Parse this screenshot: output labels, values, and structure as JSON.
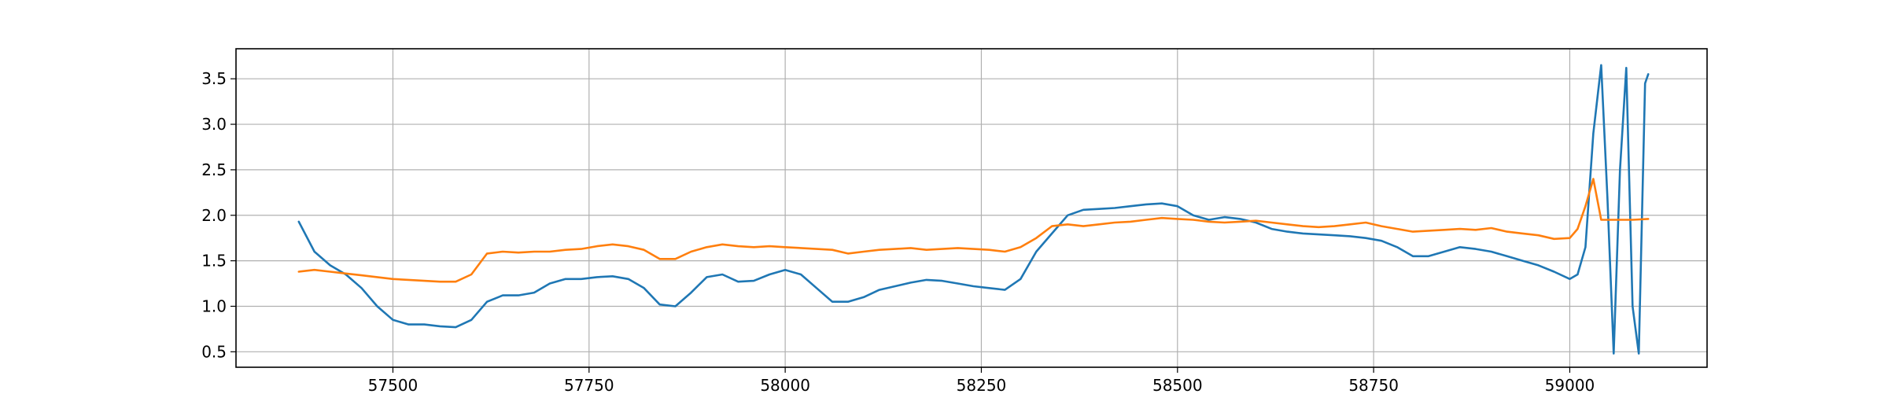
{
  "chart_data": {
    "type": "line",
    "title": "",
    "xlabel": "",
    "ylabel": "",
    "xlim": [
      57300,
      59175
    ],
    "ylim": [
      0.33,
      3.83
    ],
    "grid": true,
    "x_ticks": [
      57500,
      57750,
      58000,
      58250,
      58500,
      58750,
      59000
    ],
    "y_ticks": [
      0.5,
      1.0,
      1.5,
      2.0,
      2.5,
      3.0,
      3.5
    ],
    "x_tick_labels": [
      "57500",
      "57750",
      "58000",
      "58250",
      "58500",
      "58750",
      "59000"
    ],
    "y_tick_labels": [
      "0.5",
      "1.0",
      "1.5",
      "2.0",
      "2.5",
      "3.0",
      "3.5"
    ],
    "series": [
      {
        "color": "#1f77b4",
        "x": [
          57380,
          57400,
          57420,
          57440,
          57460,
          57480,
          57500,
          57520,
          57540,
          57560,
          57580,
          57600,
          57620,
          57640,
          57660,
          57680,
          57700,
          57720,
          57740,
          57760,
          57780,
          57800,
          57820,
          57840,
          57860,
          57880,
          57900,
          57920,
          57940,
          57960,
          57980,
          58000,
          58020,
          58040,
          58060,
          58080,
          58100,
          58120,
          58140,
          58160,
          58180,
          58200,
          58220,
          58240,
          58260,
          58280,
          58300,
          58320,
          58340,
          58360,
          58380,
          58400,
          58420,
          58440,
          58460,
          58480,
          58500,
          58520,
          58540,
          58560,
          58580,
          58600,
          58620,
          58640,
          58660,
          58680,
          58700,
          58720,
          58740,
          58760,
          58780,
          58800,
          58820,
          58840,
          58860,
          58880,
          58900,
          58920,
          58940,
          58960,
          58980,
          59000,
          59010,
          59020,
          59030,
          59040,
          59048,
          59056,
          59064,
          59072,
          59080,
          59088,
          59096,
          59100
        ],
        "y": [
          1.93,
          1.6,
          1.45,
          1.35,
          1.2,
          1.0,
          0.85,
          0.8,
          0.8,
          0.78,
          0.77,
          0.85,
          1.05,
          1.12,
          1.12,
          1.15,
          1.25,
          1.3,
          1.3,
          1.32,
          1.33,
          1.3,
          1.2,
          1.02,
          1.0,
          1.15,
          1.32,
          1.35,
          1.27,
          1.28,
          1.35,
          1.4,
          1.35,
          1.2,
          1.05,
          1.05,
          1.1,
          1.18,
          1.22,
          1.26,
          1.29,
          1.28,
          1.25,
          1.22,
          1.2,
          1.18,
          1.3,
          1.6,
          1.8,
          2.0,
          2.06,
          2.07,
          2.08,
          2.1,
          2.12,
          2.13,
          2.1,
          2.0,
          1.95,
          1.98,
          1.96,
          1.92,
          1.85,
          1.82,
          1.8,
          1.79,
          1.78,
          1.77,
          1.75,
          1.72,
          1.65,
          1.55,
          1.55,
          1.6,
          1.65,
          1.63,
          1.6,
          1.55,
          1.5,
          1.45,
          1.38,
          1.3,
          1.35,
          1.65,
          2.9,
          3.65,
          2.2,
          0.48,
          2.5,
          3.62,
          1.0,
          0.48,
          3.45,
          3.55
        ]
      },
      {
        "color": "#ff7f0e",
        "x": [
          57380,
          57400,
          57420,
          57440,
          57460,
          57480,
          57500,
          57520,
          57540,
          57560,
          57580,
          57600,
          57620,
          57640,
          57660,
          57680,
          57700,
          57720,
          57740,
          57760,
          57780,
          57800,
          57820,
          57840,
          57860,
          57880,
          57900,
          57920,
          57940,
          57960,
          57980,
          58000,
          58020,
          58040,
          58060,
          58080,
          58100,
          58120,
          58140,
          58160,
          58180,
          58200,
          58220,
          58240,
          58260,
          58280,
          58300,
          58320,
          58340,
          58360,
          58380,
          58400,
          58420,
          58440,
          58460,
          58480,
          58500,
          58520,
          58540,
          58560,
          58580,
          58600,
          58620,
          58640,
          58660,
          58680,
          58700,
          58720,
          58740,
          58760,
          58780,
          58800,
          58820,
          58840,
          58860,
          58880,
          58900,
          58920,
          58940,
          58960,
          58980,
          59000,
          59010,
          59020,
          59030,
          59040,
          59060,
          59080,
          59100
        ],
        "y": [
          1.38,
          1.4,
          1.38,
          1.36,
          1.34,
          1.32,
          1.3,
          1.29,
          1.28,
          1.27,
          1.27,
          1.35,
          1.58,
          1.6,
          1.59,
          1.6,
          1.6,
          1.62,
          1.63,
          1.66,
          1.68,
          1.66,
          1.62,
          1.52,
          1.52,
          1.6,
          1.65,
          1.68,
          1.66,
          1.65,
          1.66,
          1.65,
          1.64,
          1.63,
          1.62,
          1.58,
          1.6,
          1.62,
          1.63,
          1.64,
          1.62,
          1.63,
          1.64,
          1.63,
          1.62,
          1.6,
          1.65,
          1.75,
          1.88,
          1.9,
          1.88,
          1.9,
          1.92,
          1.93,
          1.95,
          1.97,
          1.96,
          1.95,
          1.93,
          1.92,
          1.93,
          1.94,
          1.92,
          1.9,
          1.88,
          1.87,
          1.88,
          1.9,
          1.92,
          1.88,
          1.85,
          1.82,
          1.83,
          1.84,
          1.85,
          1.84,
          1.86,
          1.82,
          1.8,
          1.78,
          1.74,
          1.75,
          1.85,
          2.1,
          2.4,
          1.95,
          1.95,
          1.95,
          1.96
        ]
      }
    ]
  }
}
